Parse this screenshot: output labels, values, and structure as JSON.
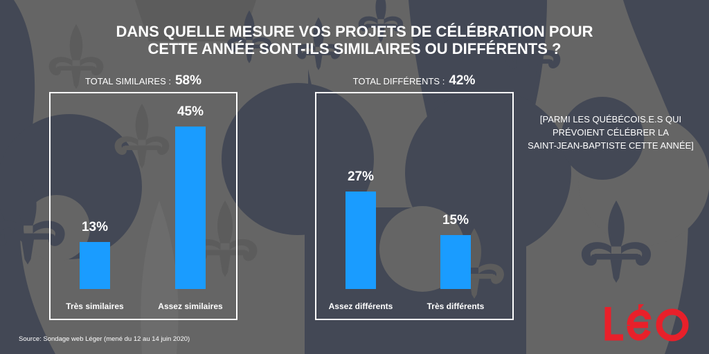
{
  "chart_data": [
    {
      "type": "bar",
      "title": "DANS QUELLE MESURE VOS PROJETS DE CÉLÉBRATION POUR CETTE ANNÉE SONT-ILS SIMILAIRES OU DIFFÉRENTS ?",
      "group_label": "TOTAL SIMILAIRES :",
      "group_total": "58%",
      "categories": [
        "Très similaires",
        "Assez similaires"
      ],
      "values": [
        13,
        45
      ],
      "value_labels": [
        "13%",
        "45%"
      ],
      "unit": "%",
      "ylim": [
        0,
        45
      ],
      "grid": false,
      "xlabel": "",
      "ylabel": ""
    },
    {
      "type": "bar",
      "title": "DANS QUELLE MESURE VOS PROJETS DE CÉLÉBRATION POUR CETTE ANNÉE SONT-ILS SIMILAIRES OU DIFFÉRENTS ?",
      "group_label": "TOTAL DIFFÉRENTS :",
      "group_total": "42%",
      "categories": [
        "Assez différents",
        "Très différents"
      ],
      "values": [
        27,
        15
      ],
      "value_labels": [
        "27%",
        "15%"
      ],
      "unit": "%",
      "ylim": [
        0,
        45
      ],
      "grid": false,
      "xlabel": "",
      "ylabel": ""
    }
  ],
  "title_lines": [
    "DANS QUELLE MESURE VOS PROJETS DE CÉLÉBRATION POUR",
    "CETTE ANNÉE SONT-ILS SIMILAIRES OU DIFFÉRENTS ?"
  ],
  "note_lines": [
    "[PARMI LES QUÉBÉCOIS.E.S QUI",
    "PRÉVOIENT CÉLÉBRER LA",
    "SAINT-JEAN-BAPTISTE CETTE ANNÉE]"
  ],
  "source": "Source: Sondage web Léger (mené du 12 au 14 juin 2020)",
  "logo": {
    "text": "léo",
    "icon": "leo-logo",
    "color": "#e8202a"
  },
  "colors": {
    "bar": "#1a9cff",
    "background": "#656565",
    "pattern_dark": "#434855",
    "pattern_light": "#6c6c6c",
    "text": "#ffffff"
  },
  "background_pattern": "fleur-de-lis"
}
